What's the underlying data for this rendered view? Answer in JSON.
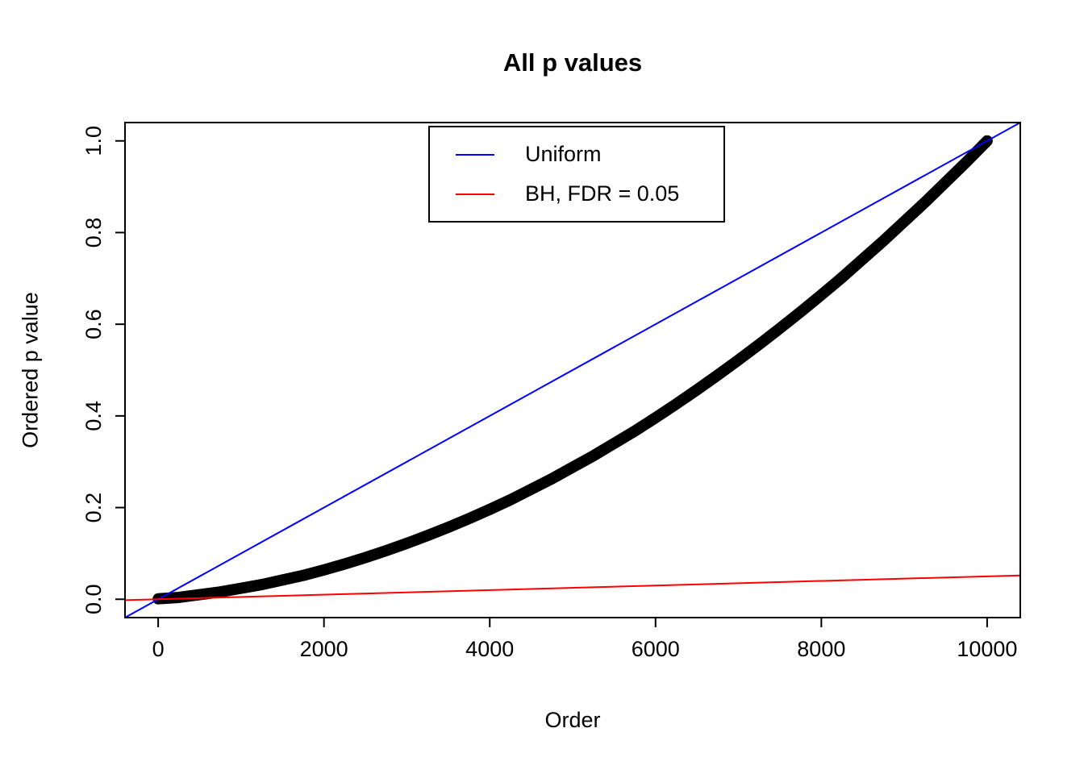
{
  "figure": {
    "background": "#ffffff",
    "foreground": "#000000"
  },
  "chart_data": {
    "type": "scatter",
    "title": "All p values",
    "xlabel": "Order",
    "ylabel": "Ordered p value",
    "xlim": [
      0,
      10000
    ],
    "ylim": [
      0,
      1
    ],
    "axis_expansion": 0.04,
    "grid": false,
    "box": true,
    "x_ticks": {
      "values": [
        0,
        2000,
        4000,
        6000,
        8000,
        10000
      ],
      "labels": [
        "0",
        "2000",
        "4000",
        "6000",
        "8000",
        "10000"
      ]
    },
    "y_ticks": {
      "values": [
        0,
        0.2,
        0.4,
        0.6,
        0.8,
        1
      ],
      "labels": [
        "0.0",
        "0.2",
        "0.4",
        "0.6",
        "0.8",
        "1.0"
      ]
    },
    "legend": {
      "position": "top-center",
      "entries": [
        {
          "label": "Uniform",
          "color": "#0000ff",
          "type": "line"
        },
        {
          "label": "BH, FDR = 0.05",
          "color": "#ff0000",
          "type": "line"
        }
      ]
    },
    "series": [
      {
        "name": "Ordered p values",
        "style": "thick-curve",
        "color": "#000000",
        "stroke_width": 14,
        "x": [
          1,
          250,
          500,
          750,
          1000,
          1250,
          1500,
          1750,
          2000,
          2250,
          2500,
          2750,
          3000,
          3250,
          3500,
          3750,
          4000,
          4250,
          4500,
          4750,
          5000,
          5250,
          5500,
          5750,
          6000,
          6250,
          6500,
          6750,
          7000,
          7250,
          7500,
          7750,
          8000,
          8250,
          8500,
          8750,
          9000,
          9250,
          9500,
          9750,
          10000
        ],
        "y": [
          0.001,
          0.004,
          0.01,
          0.016,
          0.024,
          0.032,
          0.042,
          0.052,
          0.064,
          0.077,
          0.091,
          0.106,
          0.122,
          0.139,
          0.157,
          0.176,
          0.196,
          0.217,
          0.24,
          0.263,
          0.288,
          0.313,
          0.34,
          0.367,
          0.396,
          0.426,
          0.457,
          0.489,
          0.522,
          0.556,
          0.591,
          0.627,
          0.664,
          0.702,
          0.742,
          0.782,
          0.824,
          0.866,
          0.91,
          0.954,
          1.0
        ]
      },
      {
        "name": "Uniform",
        "style": "abline",
        "color": "#0000ff",
        "stroke_width": 2,
        "intercept": 0,
        "slope": 0.0001
      },
      {
        "name": "BH, FDR = 0.05",
        "style": "abline",
        "color": "#ff0000",
        "stroke_width": 2,
        "intercept": 0,
        "slope": 5e-06
      }
    ]
  }
}
